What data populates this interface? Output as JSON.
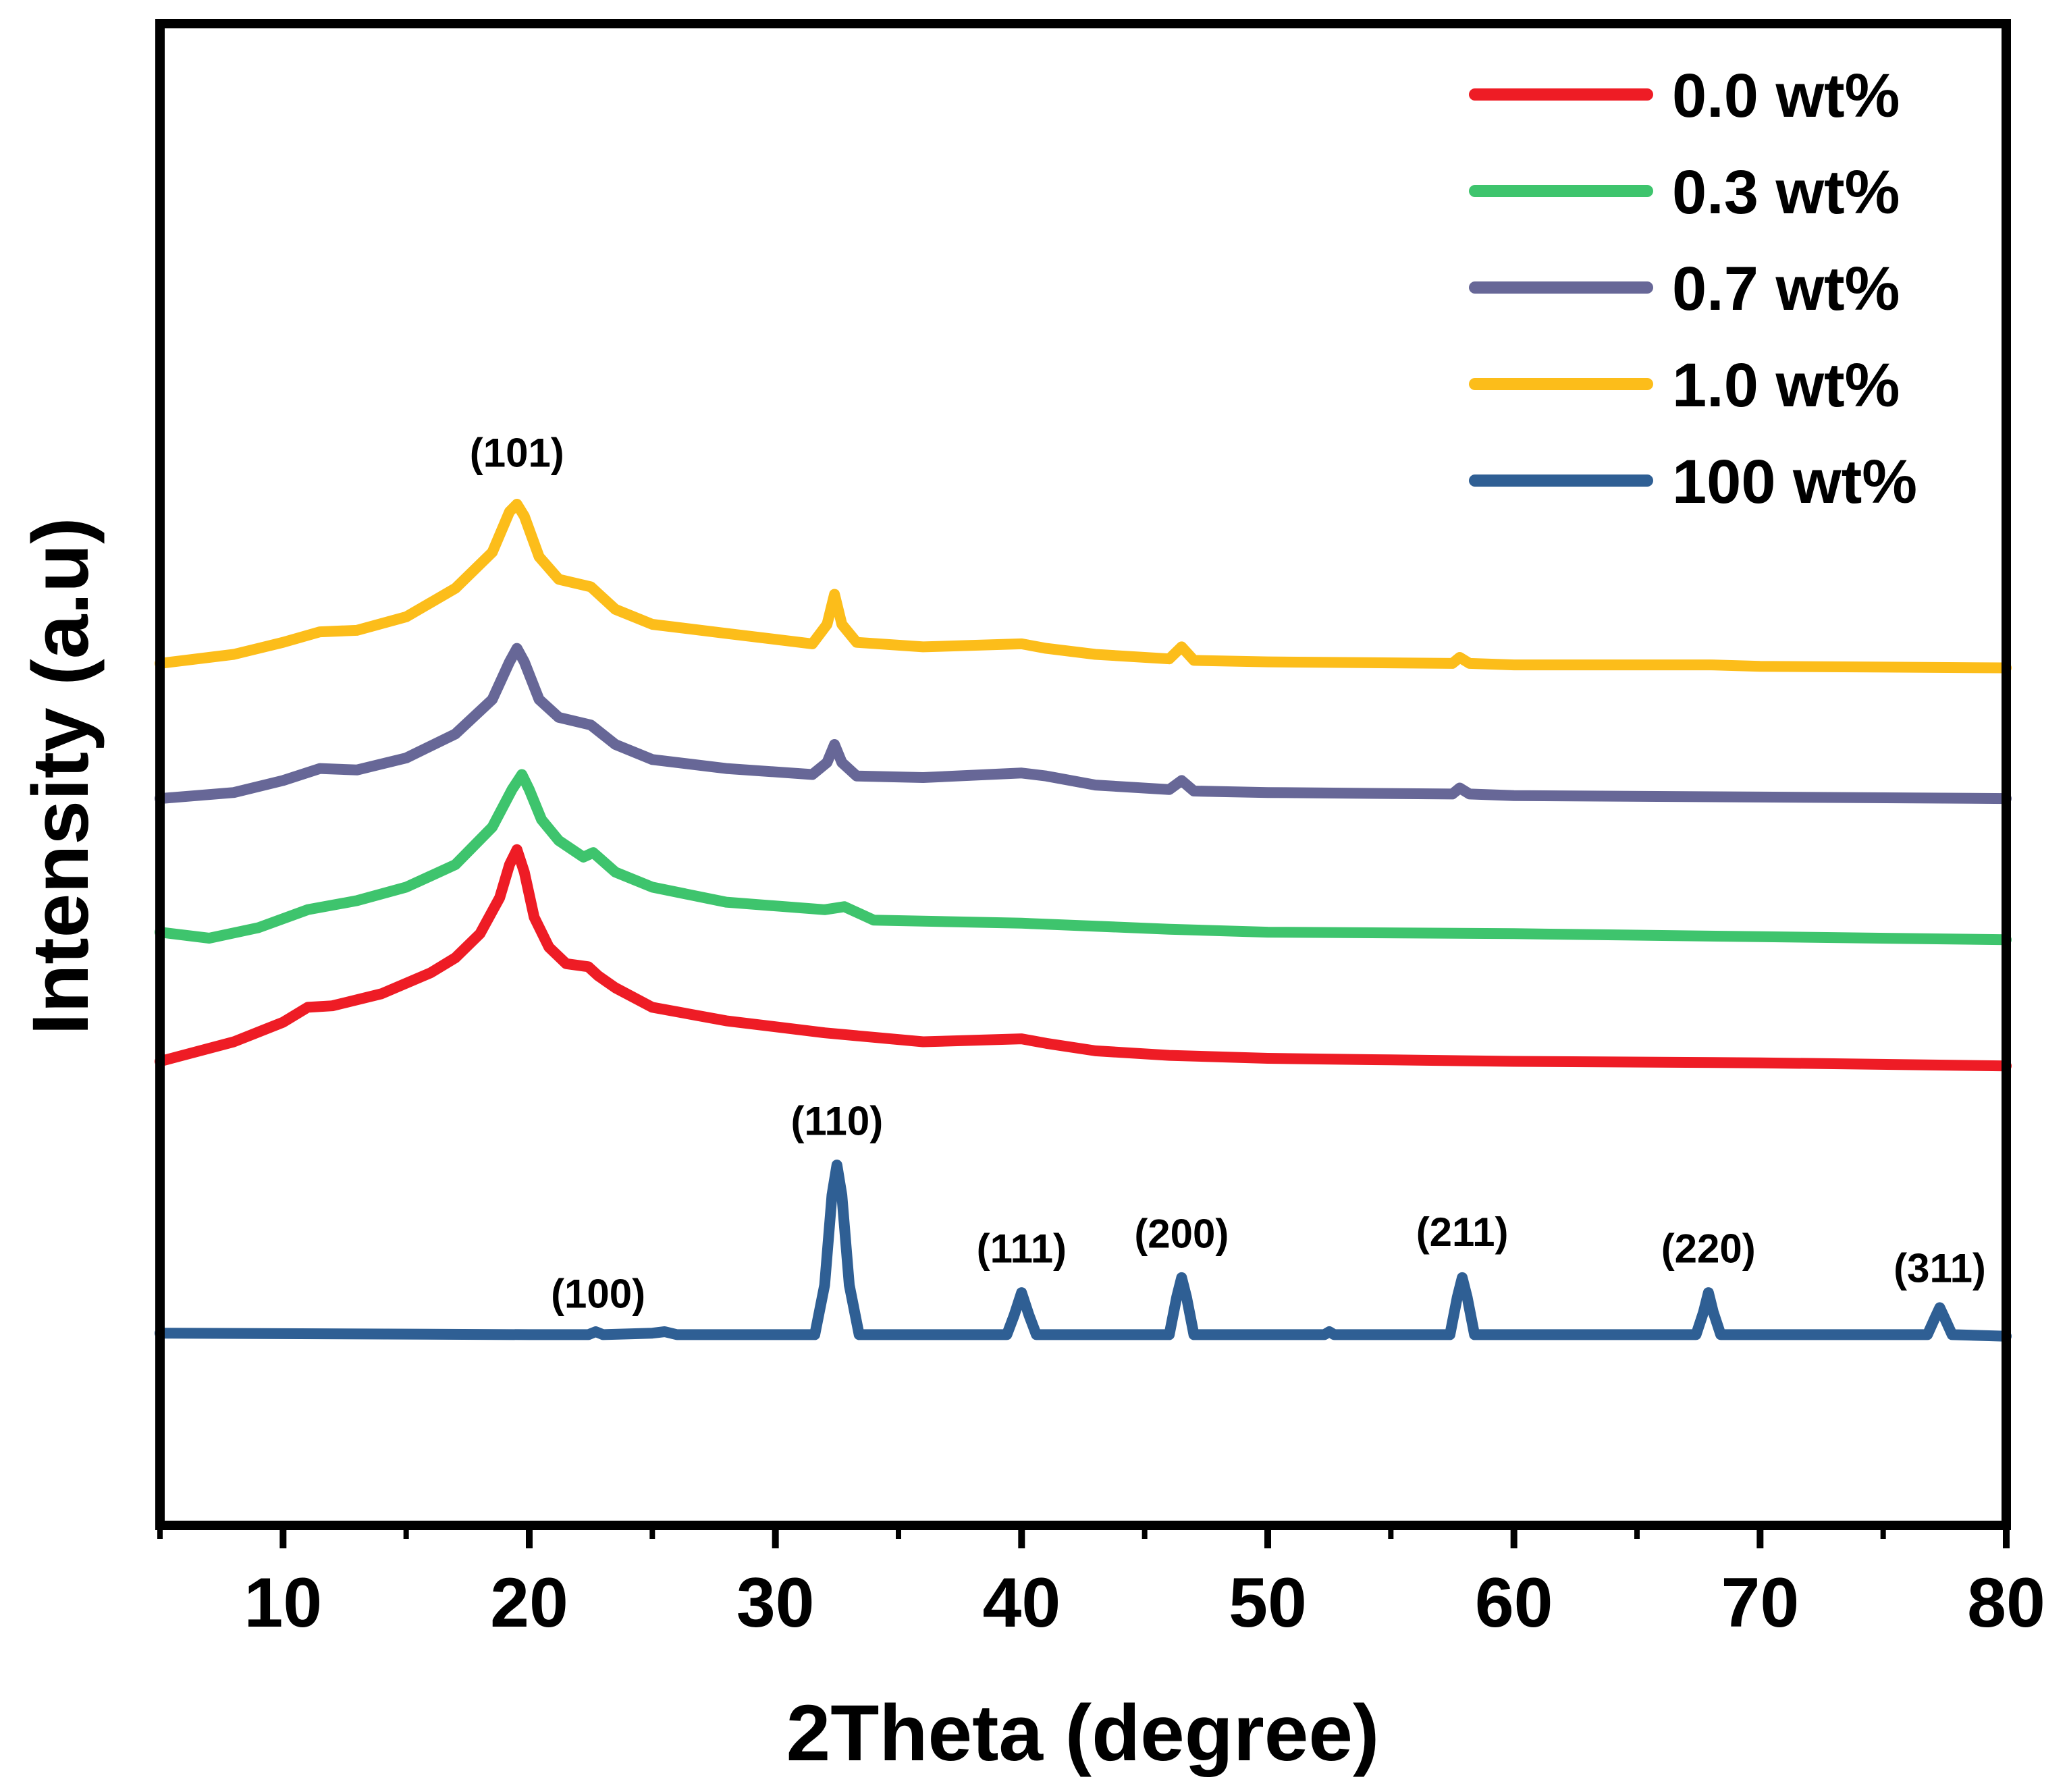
{
  "chart_data": {
    "type": "line",
    "title": "",
    "xlabel": "2Theta (degree)",
    "ylabel": "Intensity (a.u)",
    "xlim": [
      5,
      80
    ],
    "ylim": [
      0,
      1
    ],
    "xticks": [
      10,
      20,
      30,
      40,
      50,
      60,
      70,
      80
    ],
    "xtick_labels": [
      "10",
      "20",
      "30",
      "40",
      "50",
      "60",
      "70",
      "80"
    ],
    "grid": false,
    "legend_position": "top-right",
    "series": [
      {
        "name": "0.0 wt%",
        "color": "#ee1c25",
        "x": [
          5,
          8,
          10,
          11,
          12,
          14,
          16,
          17,
          18,
          18.8,
          19.2,
          19.5,
          19.8,
          20.2,
          20.8,
          21.5,
          22.4,
          22.8,
          23.5,
          25,
          28,
          32,
          36,
          40,
          41,
          43,
          46,
          50,
          55,
          60,
          70,
          80
        ],
        "y": [
          0.309,
          0.322,
          0.335,
          0.345,
          0.346,
          0.354,
          0.368,
          0.378,
          0.394,
          0.418,
          0.44,
          0.45,
          0.435,
          0.405,
          0.385,
          0.374,
          0.372,
          0.366,
          0.358,
          0.345,
          0.336,
          0.328,
          0.322,
          0.324,
          0.321,
          0.316,
          0.313,
          0.311,
          0.31,
          0.309,
          0.308,
          0.306
        ]
      },
      {
        "name": "0.3 wt%",
        "color": "#3ec46d",
        "x": [
          5,
          7,
          9,
          11,
          13,
          15,
          17,
          18.5,
          19.3,
          19.7,
          20,
          20.5,
          21.2,
          22.2,
          22.6,
          23.5,
          25,
          28,
          32,
          32.8,
          34,
          40,
          46,
          50,
          60,
          70,
          80
        ],
        "y": [
          0.395,
          0.391,
          0.398,
          0.41,
          0.416,
          0.425,
          0.44,
          0.465,
          0.49,
          0.5,
          0.49,
          0.47,
          0.456,
          0.445,
          0.448,
          0.435,
          0.425,
          0.415,
          0.41,
          0.412,
          0.403,
          0.401,
          0.397,
          0.395,
          0.394,
          0.392,
          0.39
        ]
      },
      {
        "name": "0.7 wt%",
        "color": "#676797",
        "x": [
          5,
          8,
          10,
          11.5,
          13,
          15,
          17,
          18.5,
          19.2,
          19.5,
          19.8,
          20.4,
          21.2,
          22.5,
          23.5,
          25,
          28,
          31.5,
          32.1,
          32.4,
          32.7,
          33.3,
          36,
          40,
          41,
          43,
          46,
          46.5,
          47,
          50,
          57.5,
          57.8,
          58.2,
          60,
          70,
          80
        ],
        "y": [
          0.484,
          0.488,
          0.496,
          0.504,
          0.503,
          0.511,
          0.527,
          0.55,
          0.575,
          0.584,
          0.575,
          0.55,
          0.538,
          0.533,
          0.52,
          0.51,
          0.504,
          0.5,
          0.508,
          0.52,
          0.508,
          0.499,
          0.498,
          0.501,
          0.499,
          0.493,
          0.49,
          0.496,
          0.489,
          0.488,
          0.487,
          0.491,
          0.487,
          0.486,
          0.485,
          0.484
        ]
      },
      {
        "name": "1.0 wt%",
        "color": "#fcbd1a",
        "x": [
          5,
          8,
          10,
          11.5,
          13,
          15,
          17,
          18.5,
          19.2,
          19.5,
          19.8,
          20.4,
          21.2,
          22.5,
          23.5,
          25,
          28,
          31.5,
          32.1,
          32.4,
          32.7,
          33.3,
          36,
          40,
          41,
          43,
          46,
          46.5,
          47,
          50,
          57.5,
          57.8,
          58.2,
          60,
          68,
          70,
          80
        ],
        "y": [
          0.574,
          0.58,
          0.588,
          0.595,
          0.596,
          0.605,
          0.624,
          0.648,
          0.675,
          0.68,
          0.672,
          0.645,
          0.63,
          0.625,
          0.61,
          0.6,
          0.594,
          0.587,
          0.6,
          0.62,
          0.6,
          0.588,
          0.585,
          0.587,
          0.584,
          0.58,
          0.577,
          0.585,
          0.576,
          0.575,
          0.574,
          0.578,
          0.574,
          0.573,
          0.573,
          0.572,
          0.571
        ]
      },
      {
        "name": "100 wt%",
        "color": "#2f5f94",
        "x": [
          5,
          20,
          22.4,
          22.7,
          23,
          25,
          25.5,
          26,
          31.6,
          32,
          32.3,
          32.5,
          32.7,
          33,
          33.4,
          39.4,
          39.7,
          40,
          40.3,
          40.6,
          46,
          46.3,
          46.5,
          46.7,
          47,
          52.3,
          52.5,
          52.7,
          57.4,
          57.7,
          57.9,
          58.1,
          58.4,
          67.4,
          67.7,
          67.9,
          68.1,
          68.4,
          76.8,
          77.1,
          77.3,
          77.5,
          77.8,
          80
        ],
        "y": [
          0.128,
          0.127,
          0.127,
          0.129,
          0.127,
          0.128,
          0.129,
          0.127,
          0.127,
          0.16,
          0.22,
          0.24,
          0.22,
          0.16,
          0.127,
          0.127,
          0.14,
          0.155,
          0.14,
          0.127,
          0.127,
          0.152,
          0.165,
          0.152,
          0.127,
          0.127,
          0.129,
          0.127,
          0.127,
          0.152,
          0.165,
          0.152,
          0.127,
          0.127,
          0.142,
          0.155,
          0.142,
          0.127,
          0.127,
          0.138,
          0.145,
          0.138,
          0.127,
          0.126
        ]
      }
    ],
    "annotations": [
      {
        "text": "(101)",
        "x": 19.5,
        "y": 0.705
      },
      {
        "text": "(110)",
        "x": 32.5,
        "y": 0.26
      },
      {
        "text": "(100)",
        "x": 22.8,
        "y": 0.145
      },
      {
        "text": "(111)",
        "x": 40,
        "y": 0.175
      },
      {
        "text": "(200)",
        "x": 46.5,
        "y": 0.185
      },
      {
        "text": "(211)",
        "x": 57.9,
        "y": 0.186
      },
      {
        "text": "(220)",
        "x": 67.9,
        "y": 0.175
      },
      {
        "text": "(311)",
        "x": 77.3,
        "y": 0.162
      }
    ]
  }
}
